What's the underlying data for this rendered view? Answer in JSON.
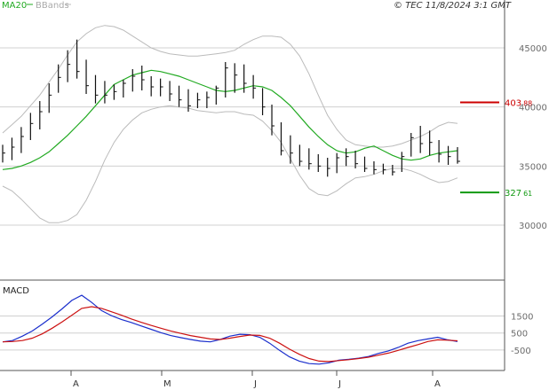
{
  "header": {
    "legend_ma": "MA20",
    "legend_bb": "BBands",
    "credit": "© TEC 11/8/2024 3:1 GMT"
  },
  "colors": {
    "price": "#111111",
    "ma": "#22aa22",
    "bbands": "#bbbbbb",
    "resistance": "#cc0000",
    "support": "#119911",
    "macd": "#1a2ecc",
    "signal": "#cc1111",
    "grid": "#d0d0d0"
  },
  "chart_data": [
    {
      "type": "ohlc",
      "title": "",
      "ylim": [
        25500,
        48000
      ],
      "yticks": [
        {
          "value": 30000,
          "label": "30000"
        },
        {
          "value": 35000,
          "label": "35000"
        },
        {
          "value": 40000,
          "label": "40000"
        },
        {
          "value": 45000,
          "label": "45000"
        }
      ],
      "xticks": [
        "A",
        "M",
        "J",
        "J",
        "A"
      ],
      "levels": [
        {
          "name": "resistance",
          "value": 40388,
          "label_main": "403",
          "label_sup": "88"
        },
        {
          "name": "support",
          "value": 32761,
          "label_main": "327",
          "label_sup": "61"
        }
      ],
      "series": [
        {
          "name": "MA20",
          "values": [
            34700,
            34800,
            35000,
            35300,
            35700,
            36200,
            36900,
            37600,
            38400,
            39200,
            40100,
            41000,
            41900,
            42300,
            42700,
            42900,
            43100,
            43000,
            42800,
            42600,
            42300,
            42000,
            41700,
            41400,
            41300,
            41400,
            41600,
            41800,
            41700,
            41400,
            40800,
            40100,
            39200,
            38300,
            37500,
            36800,
            36300,
            36100,
            36200,
            36500,
            36700,
            36300,
            35900,
            35600,
            35500,
            35600,
            35900,
            36100,
            36200,
            36300
          ]
        },
        {
          "name": "BBands upper",
          "values": [
            37800,
            38500,
            39200,
            40100,
            41000,
            42100,
            43200,
            44400,
            45500,
            46200,
            46700,
            46900,
            46800,
            46500,
            46000,
            45500,
            45000,
            44700,
            44500,
            44400,
            44300,
            44300,
            44400,
            44500,
            44600,
            44800,
            45300,
            45700,
            46000,
            46000,
            45900,
            45300,
            44300,
            42800,
            41000,
            39300,
            38100,
            37200,
            36800,
            36700,
            36600,
            36600,
            36700,
            36900,
            37200,
            37500,
            37900,
            38400,
            38700,
            38600
          ]
        },
        {
          "name": "BBands lower",
          "values": [
            33300,
            32900,
            32200,
            31400,
            30600,
            30200,
            30200,
            30400,
            30900,
            32100,
            33700,
            35500,
            37000,
            38100,
            38900,
            39500,
            39800,
            40000,
            40100,
            40000,
            39900,
            39700,
            39600,
            39500,
            39600,
            39600,
            39400,
            39300,
            38800,
            38000,
            37000,
            35600,
            34200,
            33100,
            32600,
            32500,
            32900,
            33500,
            34000,
            34100,
            34300,
            34600,
            34800,
            34800,
            34600,
            34300,
            33900,
            33600,
            33700,
            34000
          ]
        },
        {
          "name": "Price high",
          "values": [
            36800,
            37400,
            38300,
            39500,
            40500,
            42000,
            43600,
            44800,
            45700,
            44000,
            42700,
            42200,
            41900,
            42300,
            43200,
            43500,
            42600,
            42400,
            42200,
            41800,
            41500,
            41200,
            41300,
            41800,
            43800,
            43700,
            43600,
            42700,
            41600,
            40200,
            38700,
            37600,
            36800,
            36500,
            36000,
            35700,
            36100,
            36500,
            36300,
            35800,
            35400,
            35200,
            35100,
            36200,
            37800,
            38400,
            38000,
            37200,
            36700,
            36600
          ]
        },
        {
          "name": "Price low",
          "values": [
            35300,
            35500,
            36100,
            37200,
            38100,
            39500,
            41200,
            42100,
            42400,
            41100,
            40300,
            40300,
            40600,
            40800,
            41300,
            41400,
            40900,
            40900,
            40500,
            40000,
            39600,
            39900,
            39900,
            40200,
            40800,
            41200,
            41200,
            40700,
            39300,
            37600,
            35900,
            35200,
            35000,
            34700,
            34500,
            34100,
            34400,
            35000,
            34800,
            34500,
            34300,
            34300,
            34200,
            34500,
            35800,
            36100,
            35900,
            35300,
            35100,
            35200
          ]
        },
        {
          "name": "Price close",
          "values": [
            36100,
            36600,
            37500,
            38600,
            39600,
            41000,
            42500,
            43600,
            43000,
            41800,
            41000,
            41000,
            41300,
            42000,
            42600,
            42300,
            41700,
            41700,
            41100,
            40600,
            40100,
            40600,
            40800,
            41600,
            43300,
            42700,
            42000,
            41600,
            40000,
            38400,
            36300,
            36100,
            35400,
            35200,
            35000,
            34800,
            35700,
            35800,
            35200,
            34800,
            34700,
            34700,
            34500,
            35800,
            37400,
            36900,
            37000,
            36000,
            35800,
            35400
          ]
        }
      ]
    },
    {
      "type": "line",
      "title": "MACD",
      "ylim": [
        -1600,
        3300
      ],
      "yticks": [
        {
          "value": -500,
          "label": "-500"
        },
        {
          "value": 500,
          "label": "500"
        },
        {
          "value": 1500,
          "label": "1500"
        }
      ],
      "series": [
        {
          "name": "MACD",
          "values": [
            -20,
            60,
            320,
            620,
            1020,
            1450,
            1920,
            2420,
            2720,
            2300,
            1820,
            1520,
            1300,
            1120,
            920,
            720,
            520,
            350,
            230,
            120,
            20,
            -20,
            120,
            320,
            430,
            400,
            250,
            -100,
            -520,
            -900,
            -1150,
            -1300,
            -1330,
            -1250,
            -1100,
            -1050,
            -980,
            -880,
            -700,
            -550,
            -350,
            -100,
            50,
            150,
            250,
            100,
            0
          ]
        },
        {
          "name": "Signal",
          "values": [
            -20,
            0,
            60,
            200,
            450,
            780,
            1150,
            1550,
            1950,
            2050,
            1950,
            1750,
            1550,
            1330,
            1130,
            950,
            780,
            620,
            480,
            350,
            250,
            150,
            120,
            200,
            300,
            380,
            360,
            200,
            -100,
            -450,
            -750,
            -1000,
            -1150,
            -1180,
            -1120,
            -1070,
            -1000,
            -920,
            -800,
            -680,
            -520,
            -350,
            -180,
            0,
            100,
            80,
            40
          ]
        }
      ]
    }
  ]
}
